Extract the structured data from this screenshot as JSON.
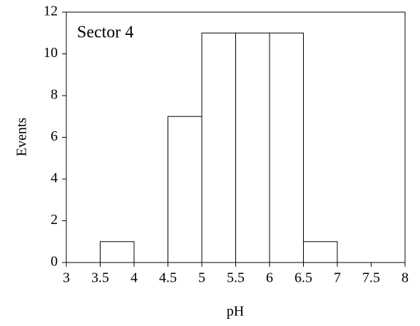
{
  "chart_data": {
    "type": "histogram",
    "annotation": "Sector 4",
    "xlabel": "pH",
    "ylabel": "Events",
    "bins": [
      3,
      3.5,
      4,
      4.5,
      5,
      5.5,
      6,
      6.5,
      7,
      7.5,
      8
    ],
    "counts": [
      0,
      1,
      0,
      7,
      11,
      11,
      11,
      1,
      0,
      0
    ],
    "color": "#ffffff",
    "edgecolor": "#000000",
    "xlim": [
      3,
      8
    ],
    "xticks": [
      3,
      3.5,
      4,
      4.5,
      5,
      5.5,
      6,
      6.5,
      7,
      7.5,
      8
    ],
    "ylim": [
      0,
      12
    ],
    "yticks": [
      0,
      2,
      4,
      6,
      8,
      10,
      12
    ],
    "grid": false
  }
}
